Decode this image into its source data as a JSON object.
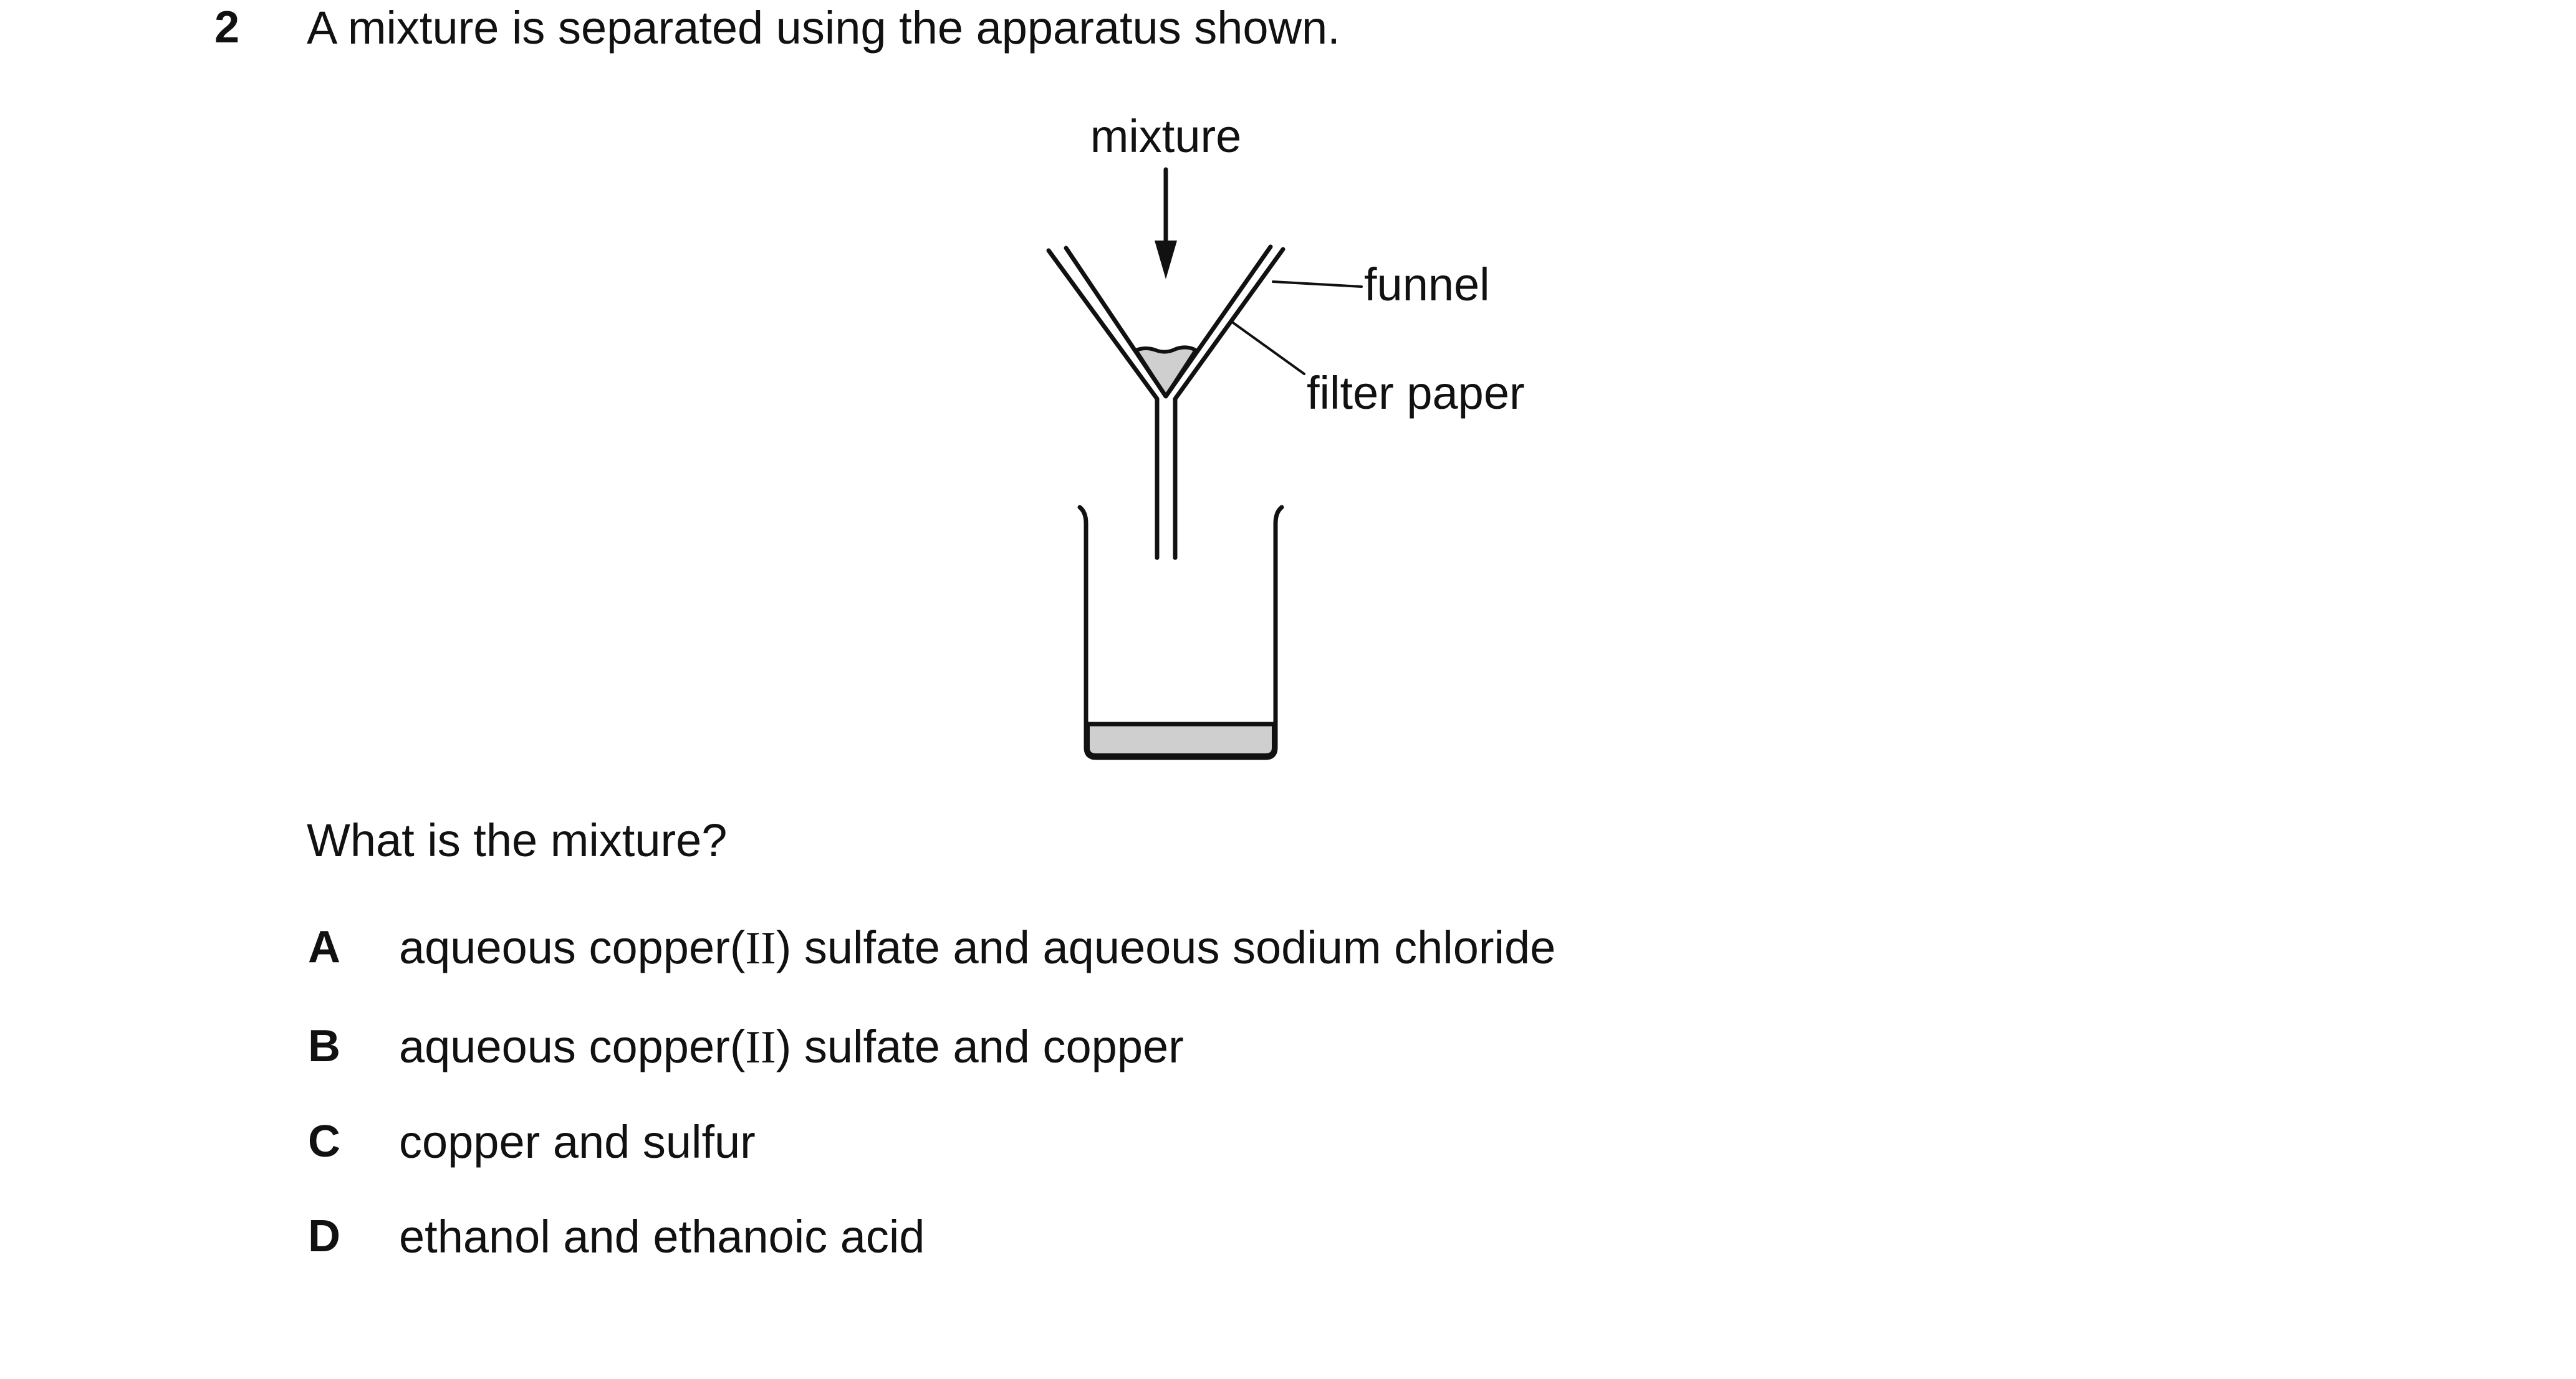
{
  "question": {
    "number": "2",
    "stem": "A mixture is separated using the apparatus shown.",
    "prompt": "What is the mixture?"
  },
  "diagram": {
    "label_mixture": "mixture",
    "label_funnel": "funnel",
    "label_filter_paper": "filter paper"
  },
  "options": [
    {
      "letter": "A",
      "pre": "aqueous copper(",
      "roman": "II",
      "post": ") sulfate and aqueous sodium chloride"
    },
    {
      "letter": "B",
      "pre": "aqueous copper(",
      "roman": "II",
      "post": ") sulfate and copper"
    },
    {
      "letter": "C",
      "pre": "copper and sulfur",
      "roman": "",
      "post": ""
    },
    {
      "letter": "D",
      "pre": "ethanol and ethanoic acid",
      "roman": "",
      "post": ""
    }
  ]
}
